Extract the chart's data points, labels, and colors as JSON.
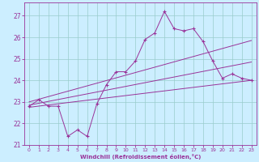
{
  "xlabel": "Windchill (Refroidissement éolien,°C)",
  "bg_color": "#cceeff",
  "grid_color": "#99cccc",
  "line_color": "#993399",
  "xlim": [
    -0.5,
    23.5
  ],
  "ylim": [
    21.0,
    27.6
  ],
  "yticks": [
    21,
    22,
    23,
    24,
    25,
    26,
    27
  ],
  "xticks": [
    0,
    1,
    2,
    3,
    4,
    5,
    6,
    7,
    8,
    9,
    10,
    11,
    12,
    13,
    14,
    15,
    16,
    17,
    18,
    19,
    20,
    21,
    22,
    23
  ],
  "main_line_x": [
    0,
    1,
    2,
    3,
    4,
    5,
    6,
    7,
    8,
    9,
    10,
    11,
    12,
    13,
    14,
    15,
    16,
    17,
    18,
    19,
    20,
    21,
    22,
    23
  ],
  "main_line_y": [
    22.8,
    23.1,
    22.8,
    22.8,
    21.4,
    21.7,
    21.4,
    22.9,
    23.8,
    24.4,
    24.4,
    24.9,
    25.9,
    26.2,
    27.2,
    26.4,
    26.3,
    26.4,
    25.8,
    24.9,
    24.1,
    24.3,
    24.1,
    24.0
  ],
  "upper_line_x": [
    0,
    23
  ],
  "upper_line_y": [
    23.0,
    25.85
  ],
  "lower_line_x": [
    0,
    23
  ],
  "lower_line_y": [
    22.75,
    24.0
  ],
  "mid_line_x": [
    0,
    23
  ],
  "mid_line_y": [
    22.85,
    24.85
  ]
}
